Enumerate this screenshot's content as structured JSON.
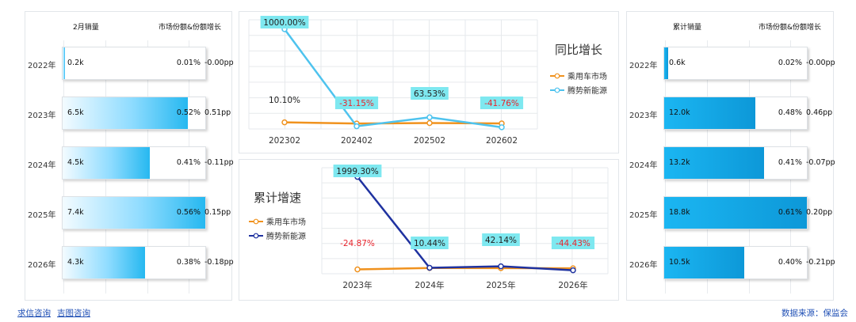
{
  "left_panel": {
    "title": "2月销量",
    "subtitle": "市场份额&份额增长",
    "rows": [
      {
        "year": "2022年",
        "value_label": "0.2k",
        "fill": 0.01,
        "share": "0.01%",
        "growth": "-0.00pp"
      },
      {
        "year": "2023年",
        "value_label": "6.5k",
        "fill": 0.88,
        "share": "0.52%",
        "growth": "0.51pp"
      },
      {
        "year": "2024年",
        "value_label": "4.5k",
        "fill": 0.61,
        "share": "0.41%",
        "growth": "-0.11pp"
      },
      {
        "year": "2025年",
        "value_label": "7.4k",
        "fill": 1.0,
        "share": "0.56%",
        "growth": "0.15pp"
      },
      {
        "year": "2026年",
        "value_label": "4.3k",
        "fill": 0.58,
        "share": "0.38%",
        "growth": "-0.18pp"
      }
    ]
  },
  "right_panel": {
    "title": "累计销量",
    "subtitle": "市场份额&份额增长",
    "rows": [
      {
        "year": "2022年",
        "value_label": "0.6k",
        "fill": 0.03,
        "share": "0.02%",
        "growth": "-0.00pp"
      },
      {
        "year": "2023年",
        "value_label": "12.0k",
        "fill": 0.64,
        "share": "0.48%",
        "growth": "0.46pp"
      },
      {
        "year": "2024年",
        "value_label": "13.2k",
        "fill": 0.7,
        "share": "0.41%",
        "growth": "-0.07pp"
      },
      {
        "year": "2025年",
        "value_label": "18.8k",
        "fill": 1.0,
        "share": "0.61%",
        "growth": "0.20pp"
      },
      {
        "year": "2026年",
        "value_label": "10.5k",
        "fill": 0.56,
        "share": "0.40%",
        "growth": "-0.21pp"
      }
    ]
  },
  "chart_data": [
    {
      "type": "line",
      "title": "同比增长",
      "categories": [
        "202302",
        "202402",
        "202502",
        "202602"
      ],
      "ylim": [
        -60,
        1100
      ],
      "grid": true,
      "legend_position": "right",
      "series": [
        {
          "name": "乘用车市场",
          "color": "#f0921e",
          "values": [
            10.1,
            -2.0,
            3.0,
            -1.0
          ],
          "labels": [
            "10.10%",
            "",
            "",
            ""
          ]
        },
        {
          "name": "腾势新能源",
          "color": "#4ec3ee",
          "values": [
            1000.0,
            -31.15,
            63.53,
            -41.76
          ],
          "labels": [
            "1000.00%",
            "-31.15%",
            "63.53%",
            "-41.76%"
          ]
        }
      ]
    },
    {
      "type": "line",
      "title": "累计增速",
      "categories": [
        "2023年",
        "2024年",
        "2025年",
        "2026年"
      ],
      "ylim": [
        -120,
        2200
      ],
      "grid": true,
      "legend_position": "left",
      "series": [
        {
          "name": "乘用车市场",
          "color": "#f0921e",
          "values": [
            -24.87,
            6.0,
            4.0,
            -1.0
          ],
          "labels": [
            "-24.87%",
            "",
            "",
            ""
          ]
        },
        {
          "name": "腾势新能源",
          "color": "#1f32a0",
          "values": [
            1999.3,
            10.44,
            42.14,
            -44.43
          ],
          "labels": [
            "1999.30%",
            "10.44%",
            "42.14%",
            "-44.43%"
          ]
        }
      ]
    }
  ],
  "footer": {
    "link1": "求信咨询",
    "link2": "吉图咨询",
    "source": "数据来源：保监会"
  },
  "colors": {
    "label_box": "#7ee8f0",
    "negative_label": "#e8242c",
    "positive_label": "#222222"
  }
}
